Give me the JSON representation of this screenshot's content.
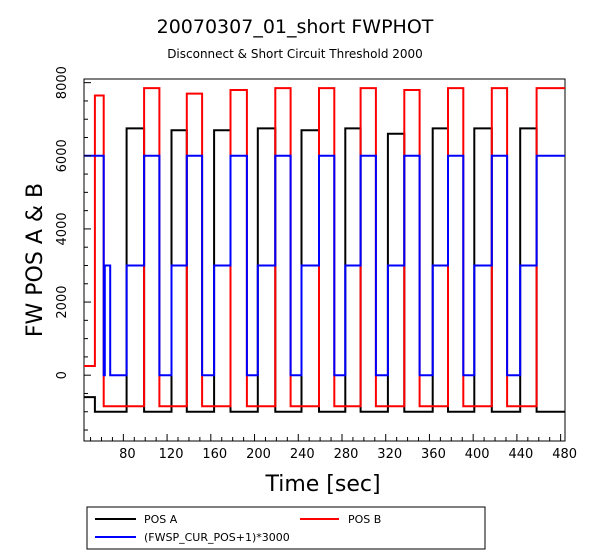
{
  "chart_data": {
    "type": "line",
    "title": "20070307_01_short FWPHOT",
    "subtitle": "Disconnect & Short Circuit Threshold 2000",
    "xlabel": "Time [sec]",
    "ylabel": "FW POS A & B",
    "xlim": [
      44,
      484
    ],
    "ylim": [
      -1800,
      8100
    ],
    "x_ticks": [
      80,
      120,
      160,
      200,
      240,
      280,
      320,
      360,
      400,
      440,
      480
    ],
    "y_ticks": [
      0,
      2000,
      4000,
      6000,
      8000
    ],
    "grid": false,
    "legend_position": "bottom",
    "series": [
      {
        "name": "POS A",
        "color": "#000000",
        "points": [
          [
            44,
            -600
          ],
          [
            54,
            -600
          ],
          [
            54,
            -1000
          ],
          [
            62,
            -1000
          ],
          [
            62,
            -1000
          ],
          [
            83,
            -1000
          ],
          [
            83,
            6750
          ],
          [
            99,
            6750
          ],
          [
            99,
            -1000
          ],
          [
            120,
            -1000
          ],
          [
            120,
            -1000
          ],
          [
            124,
            -1000
          ],
          [
            124,
            6700
          ],
          [
            138,
            6700
          ],
          [
            138,
            -1000
          ],
          [
            156,
            -1000
          ],
          [
            156,
            -1000
          ],
          [
            163,
            -1000
          ],
          [
            163,
            6700
          ],
          [
            178,
            6700
          ],
          [
            178,
            -1000
          ],
          [
            198,
            -1000
          ],
          [
            198,
            -1000
          ],
          [
            203,
            -1000
          ],
          [
            203,
            6750
          ],
          [
            219,
            6750
          ],
          [
            219,
            -1000
          ],
          [
            238,
            -1000
          ],
          [
            238,
            -1000
          ],
          [
            243,
            -1000
          ],
          [
            243,
            6700
          ],
          [
            259,
            6700
          ],
          [
            259,
            -1000
          ],
          [
            276,
            -1000
          ],
          [
            276,
            -1000
          ],
          [
            283,
            -1000
          ],
          [
            283,
            6750
          ],
          [
            297,
            6750
          ],
          [
            297,
            -1000
          ],
          [
            316,
            -1000
          ],
          [
            316,
            -1000
          ],
          [
            322,
            -1000
          ],
          [
            322,
            6600
          ],
          [
            337,
            6600
          ],
          [
            337,
            -1000
          ],
          [
            356,
            -1000
          ],
          [
            356,
            -1000
          ],
          [
            363,
            -1000
          ],
          [
            363,
            6750
          ],
          [
            377,
            6750
          ],
          [
            377,
            -1000
          ],
          [
            396,
            -1000
          ],
          [
            396,
            -1000
          ],
          [
            401,
            -1000
          ],
          [
            401,
            6750
          ],
          [
            417,
            6750
          ],
          [
            417,
            -1000
          ],
          [
            436,
            -1000
          ],
          [
            436,
            -1000
          ],
          [
            443,
            -1000
          ],
          [
            443,
            6750
          ],
          [
            458,
            6750
          ],
          [
            458,
            -1000
          ],
          [
            484,
            -1000
          ]
        ]
      },
      {
        "name": "POS B",
        "color": "#ff0000",
        "points": [
          [
            44,
            250
          ],
          [
            54,
            250
          ],
          [
            54,
            7650
          ],
          [
            62,
            7650
          ],
          [
            62,
            -850
          ],
          [
            83,
            -850
          ],
          [
            83,
            -850
          ],
          [
            99,
            -850
          ],
          [
            99,
            7850
          ],
          [
            113,
            7850
          ],
          [
            113,
            -850
          ],
          [
            120,
            -850
          ],
          [
            120,
            -850
          ],
          [
            124,
            -850
          ],
          [
            124,
            -850
          ],
          [
            138,
            -850
          ],
          [
            138,
            7700
          ],
          [
            152,
            7700
          ],
          [
            152,
            -850
          ],
          [
            156,
            -850
          ],
          [
            156,
            -850
          ],
          [
            163,
            -850
          ],
          [
            163,
            -850
          ],
          [
            178,
            -850
          ],
          [
            178,
            7800
          ],
          [
            193,
            7800
          ],
          [
            193,
            -850
          ],
          [
            198,
            -850
          ],
          [
            198,
            -850
          ],
          [
            203,
            -850
          ],
          [
            203,
            -850
          ],
          [
            219,
            -850
          ],
          [
            219,
            7850
          ],
          [
            233,
            7850
          ],
          [
            233,
            -850
          ],
          [
            238,
            -850
          ],
          [
            238,
            -850
          ],
          [
            243,
            -850
          ],
          [
            243,
            -850
          ],
          [
            259,
            -850
          ],
          [
            259,
            7850
          ],
          [
            273,
            7850
          ],
          [
            273,
            -850
          ],
          [
            276,
            -850
          ],
          [
            276,
            -850
          ],
          [
            283,
            -850
          ],
          [
            283,
            -850
          ],
          [
            297,
            -850
          ],
          [
            297,
            7850
          ],
          [
            311,
            7850
          ],
          [
            311,
            -850
          ],
          [
            316,
            -850
          ],
          [
            316,
            -850
          ],
          [
            322,
            -850
          ],
          [
            322,
            -850
          ],
          [
            337,
            -850
          ],
          [
            337,
            7800
          ],
          [
            351,
            7800
          ],
          [
            351,
            -850
          ],
          [
            356,
            -850
          ],
          [
            356,
            -850
          ],
          [
            363,
            -850
          ],
          [
            363,
            -850
          ],
          [
            377,
            -850
          ],
          [
            377,
            7850
          ],
          [
            391,
            7850
          ],
          [
            391,
            -850
          ],
          [
            396,
            -850
          ],
          [
            396,
            -850
          ],
          [
            401,
            -850
          ],
          [
            401,
            -850
          ],
          [
            417,
            -850
          ],
          [
            417,
            7850
          ],
          [
            431,
            7850
          ],
          [
            431,
            -850
          ],
          [
            436,
            -850
          ],
          [
            436,
            -850
          ],
          [
            443,
            -850
          ],
          [
            443,
            -850
          ],
          [
            458,
            -850
          ],
          [
            458,
            7850
          ],
          [
            484,
            7850
          ]
        ]
      },
      {
        "name": "(FWSP_CUR_POS+1)*3000",
        "color": "#0000ff",
        "points": [
          [
            44,
            6000
          ],
          [
            54,
            6000
          ],
          [
            54,
            6000
          ],
          [
            62,
            6000
          ],
          [
            62,
            0
          ],
          [
            63,
            0
          ],
          [
            63,
            3000
          ],
          [
            68,
            3000
          ],
          [
            68,
            0
          ],
          [
            83,
            0
          ],
          [
            83,
            3000
          ],
          [
            99,
            3000
          ],
          [
            99,
            6000
          ],
          [
            113,
            6000
          ],
          [
            113,
            0
          ],
          [
            120,
            0
          ],
          [
            120,
            0
          ],
          [
            124,
            0
          ],
          [
            124,
            3000
          ],
          [
            138,
            3000
          ],
          [
            138,
            6000
          ],
          [
            152,
            6000
          ],
          [
            152,
            0
          ],
          [
            156,
            0
          ],
          [
            156,
            0
          ],
          [
            163,
            0
          ],
          [
            163,
            3000
          ],
          [
            178,
            3000
          ],
          [
            178,
            6000
          ],
          [
            193,
            6000
          ],
          [
            193,
            0
          ],
          [
            198,
            0
          ],
          [
            198,
            0
          ],
          [
            203,
            0
          ],
          [
            203,
            3000
          ],
          [
            219,
            3000
          ],
          [
            219,
            6000
          ],
          [
            233,
            6000
          ],
          [
            233,
            0
          ],
          [
            238,
            0
          ],
          [
            238,
            0
          ],
          [
            243,
            0
          ],
          [
            243,
            3000
          ],
          [
            259,
            3000
          ],
          [
            259,
            6000
          ],
          [
            273,
            6000
          ],
          [
            273,
            0
          ],
          [
            276,
            0
          ],
          [
            276,
            0
          ],
          [
            283,
            0
          ],
          [
            283,
            3000
          ],
          [
            297,
            3000
          ],
          [
            297,
            6000
          ],
          [
            311,
            6000
          ],
          [
            311,
            0
          ],
          [
            316,
            0
          ],
          [
            316,
            0
          ],
          [
            322,
            0
          ],
          [
            322,
            3000
          ],
          [
            337,
            3000
          ],
          [
            337,
            6000
          ],
          [
            351,
            6000
          ],
          [
            351,
            0
          ],
          [
            356,
            0
          ],
          [
            356,
            0
          ],
          [
            363,
            0
          ],
          [
            363,
            3000
          ],
          [
            377,
            3000
          ],
          [
            377,
            6000
          ],
          [
            391,
            6000
          ],
          [
            391,
            0
          ],
          [
            396,
            0
          ],
          [
            396,
            0
          ],
          [
            401,
            0
          ],
          [
            401,
            3000
          ],
          [
            417,
            3000
          ],
          [
            417,
            6000
          ],
          [
            431,
            6000
          ],
          [
            431,
            0
          ],
          [
            436,
            0
          ],
          [
            436,
            0
          ],
          [
            443,
            0
          ],
          [
            443,
            3000
          ],
          [
            458,
            3000
          ],
          [
            458,
            6000
          ],
          [
            484,
            6000
          ]
        ]
      }
    ]
  }
}
